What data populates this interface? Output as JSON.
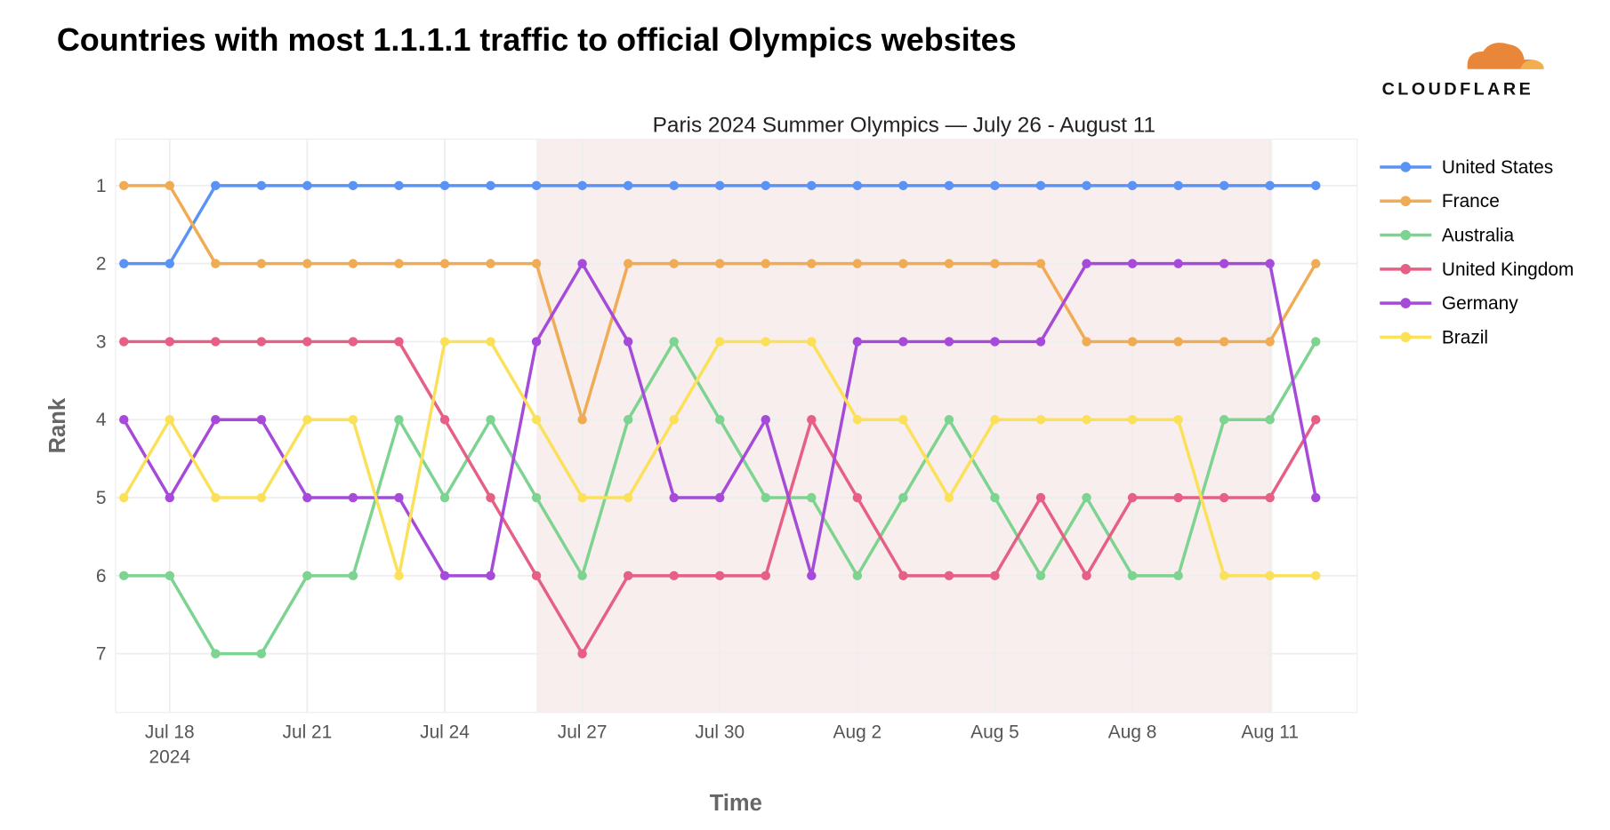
{
  "chart_data": {
    "type": "line",
    "title": "Countries with most 1.1.1.1 traffic to official Olympics websites",
    "subtitle": "Paris 2024 Summer Olympics — July 26 - August 11",
    "brand": "CLOUDFLARE",
    "xlabel": "Time",
    "ylabel": "Rank",
    "x": [
      "2024-07-17",
      "2024-07-18",
      "2024-07-19",
      "2024-07-20",
      "2024-07-21",
      "2024-07-22",
      "2024-07-23",
      "2024-07-24",
      "2024-07-25",
      "2024-07-26",
      "2024-07-27",
      "2024-07-28",
      "2024-07-29",
      "2024-07-30",
      "2024-07-31",
      "2024-08-01",
      "2024-08-02",
      "2024-08-03",
      "2024-08-04",
      "2024-08-05",
      "2024-08-06",
      "2024-08-07",
      "2024-08-08",
      "2024-08-09",
      "2024-08-10",
      "2024-08-11",
      "2024-08-12"
    ],
    "x_ticks": [
      {
        "index": 1,
        "label": "Jul 18",
        "sub": "2024"
      },
      {
        "index": 4,
        "label": "Jul 21"
      },
      {
        "index": 7,
        "label": "Jul 24"
      },
      {
        "index": 10,
        "label": "Jul 27"
      },
      {
        "index": 13,
        "label": "Jul 30"
      },
      {
        "index": 16,
        "label": "Aug 2"
      },
      {
        "index": 19,
        "label": "Aug 5"
      },
      {
        "index": 22,
        "label": "Aug 8"
      },
      {
        "index": 25,
        "label": "Aug 11"
      }
    ],
    "y_ticks": [
      "1",
      "2",
      "3",
      "4",
      "5",
      "6",
      "7"
    ],
    "ylim": [
      7.7,
      0.4
    ],
    "highlight": {
      "from_index": 9,
      "to_index": 25.05,
      "color": "#f7eeed"
    },
    "grid": true,
    "legend_position": "right",
    "series": [
      {
        "name": "United States",
        "color": "#5b93f5",
        "values": [
          2,
          2,
          1,
          1,
          1,
          1,
          1,
          1,
          1,
          1,
          1,
          1,
          1,
          1,
          1,
          1,
          1,
          1,
          1,
          1,
          1,
          1,
          1,
          1,
          1,
          1,
          1
        ]
      },
      {
        "name": "France",
        "color": "#f0ab55",
        "values": [
          1,
          1,
          2,
          2,
          2,
          2,
          2,
          2,
          2,
          2,
          4,
          2,
          2,
          2,
          2,
          2,
          2,
          2,
          2,
          2,
          2,
          3,
          3,
          3,
          3,
          3,
          2
        ]
      },
      {
        "name": "Australia",
        "color": "#7dd390",
        "values": [
          6,
          6,
          7,
          7,
          6,
          6,
          4,
          5,
          4,
          5,
          6,
          4,
          3,
          4,
          5,
          5,
          6,
          5,
          4,
          5,
          6,
          5,
          6,
          6,
          4,
          4,
          3
        ]
      },
      {
        "name": "United Kingdom",
        "color": "#e65f85",
        "values": [
          3,
          3,
          3,
          3,
          3,
          3,
          3,
          4,
          5,
          6,
          7,
          6,
          6,
          6,
          6,
          4,
          5,
          6,
          6,
          6,
          5,
          6,
          5,
          5,
          5,
          5,
          4
        ]
      },
      {
        "name": "Germany",
        "color": "#a64ad9",
        "values": [
          4,
          5,
          4,
          4,
          5,
          5,
          5,
          6,
          6,
          3,
          2,
          3,
          5,
          5,
          4,
          6,
          3,
          3,
          3,
          3,
          3,
          2,
          2,
          2,
          2,
          2,
          5
        ]
      },
      {
        "name": "Brazil",
        "color": "#fbe15a",
        "values": [
          5,
          4,
          5,
          5,
          4,
          4,
          6,
          3,
          3,
          4,
          5,
          5,
          4,
          3,
          3,
          3,
          4,
          4,
          5,
          4,
          4,
          4,
          4,
          4,
          6,
          6,
          6
        ]
      }
    ]
  }
}
